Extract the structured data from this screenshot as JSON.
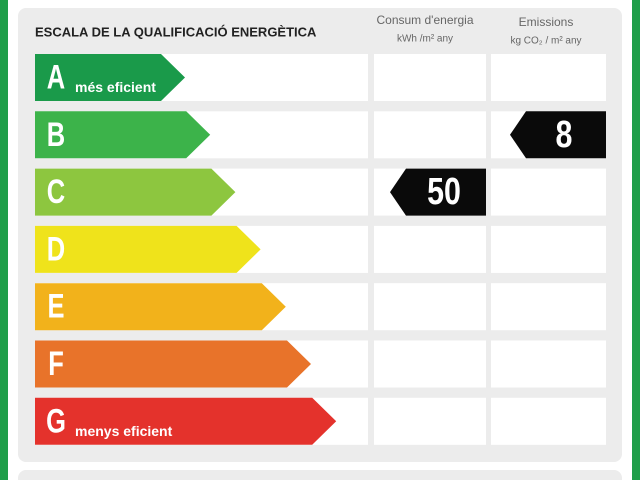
{
  "title": "ESCALA DE LA QUALIFICACIÓ ENERGÈTICA",
  "columns": [
    {
      "title": "Consum d'energia",
      "unit": "kWh /m² any"
    },
    {
      "title": "Emissions",
      "unit": "kg CO₂ / m² any"
    }
  ],
  "rows": [
    {
      "letter": "A",
      "label": "més eficient",
      "color": "#1a9a4a",
      "consumption": null,
      "emissions": null
    },
    {
      "letter": "B",
      "label": null,
      "color": "#3cb34a",
      "consumption": null,
      "emissions": 8
    },
    {
      "letter": "C",
      "label": null,
      "color": "#8dc63f",
      "consumption": 50,
      "emissions": null
    },
    {
      "letter": "D",
      "label": null,
      "color": "#efe31b",
      "consumption": null,
      "emissions": null
    },
    {
      "letter": "E",
      "label": null,
      "color": "#f2b21b",
      "consumption": null,
      "emissions": null
    },
    {
      "letter": "F",
      "label": null,
      "color": "#e8732a",
      "consumption": null,
      "emissions": null
    },
    {
      "letter": "G",
      "label": "menys eficient",
      "color": "#e4322c",
      "consumption": null,
      "emissions": null
    }
  ]
}
